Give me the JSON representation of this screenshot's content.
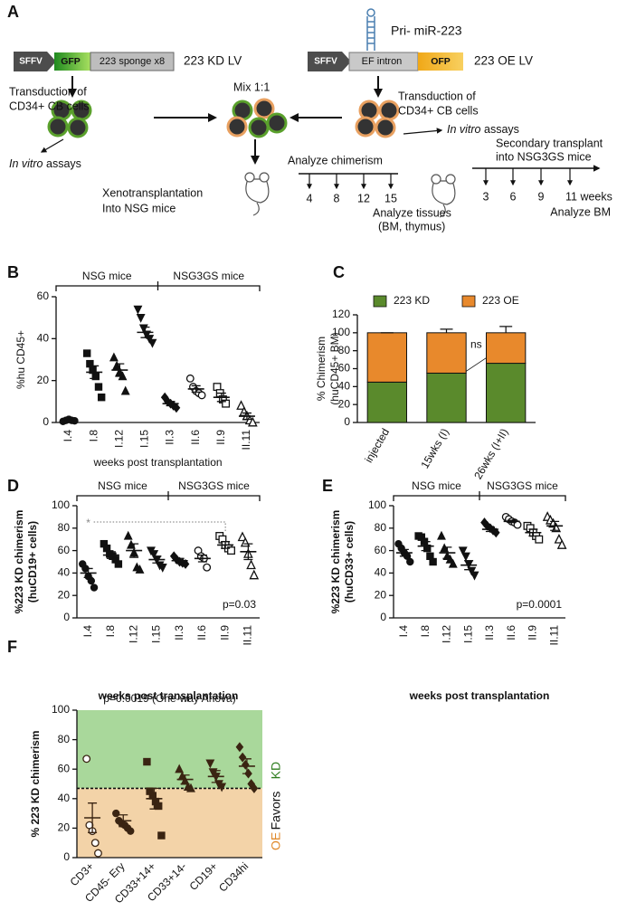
{
  "panel_labels": [
    "A",
    "B",
    "C",
    "D",
    "E",
    "F"
  ],
  "diagram": {
    "kd_construct": {
      "promoter": "SFFV",
      "reporter": "GFP",
      "insert": "223 sponge x8",
      "name": "223 KD LV"
    },
    "oe_construct": {
      "hairpin": "Pri- miR-223",
      "promoter": "SFFV",
      "intron": "EF intron",
      "reporter": "OFP",
      "name": "223 OE LV"
    },
    "transduction_left": [
      "Transduction of",
      "CD34+ CB cells"
    ],
    "transduction_right": [
      "Transduction of",
      "CD34+ CB cells"
    ],
    "mix": "Mix 1:1",
    "in_vitro_left": [
      "In vitro",
      " assays"
    ],
    "in_vitro_right": [
      "In vitro",
      " assays"
    ],
    "xeno": [
      "Xenotransplantation",
      "Into NSG mice"
    ],
    "analyze_chimerism": "Analyze chimerism",
    "primary_timepoints": [
      "4",
      "8",
      "12",
      "15"
    ],
    "analyze_tissues": [
      "Analyze tissues",
      "(BM, thymus)"
    ],
    "secondary": [
      "Secondary transplant",
      "into NSG3GS mice"
    ],
    "secondary_timepoints": [
      "3",
      "6",
      "9",
      "11 weeks"
    ],
    "analyze_bm": "Analyze BM"
  },
  "chart_data": [
    {
      "type": "dot",
      "ylabel": [
        "%hu CD45+"
      ],
      "xlabel": "weeks post transplantation",
      "group_labels": [
        "NSG mice",
        "NSG3GS mice"
      ],
      "color": "#111111",
      "categories": [
        "I.4",
        "I.8",
        "I.12",
        "I.15",
        "II.3",
        "II.6",
        "II.9",
        "II.11"
      ],
      "markers": [
        "circle",
        "square",
        "triangle",
        "down",
        "diamond",
        "circle-open",
        "square-open",
        "triangle-open"
      ],
      "points": [
        [
          0.5,
          1,
          1.5,
          1,
          0.8
        ],
        [
          33,
          28,
          25,
          22,
          17,
          12
        ],
        [
          31,
          27,
          24,
          22,
          15
        ],
        [
          54,
          50,
          45,
          42,
          40,
          38
        ],
        [
          12,
          10,
          9,
          8,
          7
        ],
        [
          21,
          17,
          15,
          14,
          13
        ],
        [
          17,
          14,
          11,
          9
        ],
        [
          8,
          5,
          3,
          1,
          0
        ]
      ],
      "means": [
        1,
        24,
        25,
        43,
        9,
        16,
        12,
        3
      ],
      "sems": [
        0.3,
        3,
        3,
        2.5,
        1,
        1.5,
        2,
        1.5
      ],
      "ylim": [
        0,
        60
      ],
      "yticks": [
        0,
        20,
        40,
        60
      ]
    },
    {
      "type": "bar",
      "stacked": true,
      "ylabel": [
        "% Chimerism",
        "(huCD45+ BM)"
      ],
      "categories": [
        "injected",
        "15wks (I)",
        "26wks (I+II)"
      ],
      "series": [
        {
          "name": "223 KD",
          "color": "#5a8a2c",
          "values": [
            45,
            55,
            66
          ],
          "errors": [
            0,
            4,
            8
          ]
        },
        {
          "name": "223 OE",
          "color": "#e8892c",
          "values": [
            55,
            45,
            34
          ],
          "errors": [
            0,
            4,
            7
          ]
        }
      ],
      "annotation": "ns",
      "ylim": [
        0,
        120
      ],
      "yticks": [
        0,
        20,
        40,
        60,
        80,
        100,
        120
      ]
    },
    {
      "type": "dot",
      "ylabel": [
        "%223 KD chimerism",
        "(huCD19+ cells)"
      ],
      "xlabel": "weeks post transplantation",
      "group_labels": [
        "NSG mice",
        "NSG3GS mice"
      ],
      "color": "#111111",
      "significance": "*",
      "p_value": "p=0.03",
      "categories": [
        "I.4",
        "I.8",
        "I.12",
        "I.15",
        "II.3",
        "II.6",
        "II.9",
        "II.11"
      ],
      "markers": [
        "circle",
        "square",
        "triangle",
        "down",
        "diamond",
        "circle-open",
        "square-open",
        "triangle-open"
      ],
      "points": [
        [
          48,
          44,
          37,
          33,
          27
        ],
        [
          66,
          62,
          57,
          55,
          52,
          48
        ],
        [
          73,
          65,
          58,
          45,
          43
        ],
        [
          60,
          57,
          52,
          47,
          45
        ],
        [
          55,
          52,
          50,
          49,
          48
        ],
        [
          60,
          55,
          53,
          45
        ],
        [
          73,
          70,
          65,
          62,
          60
        ],
        [
          72,
          67,
          57,
          47,
          38
        ]
      ],
      "means": [
        40,
        56,
        60,
        52,
        51,
        53,
        65,
        59
      ],
      "sems": [
        4,
        3,
        6,
        3,
        2,
        3,
        3,
        7
      ],
      "ylim": [
        0,
        100
      ],
      "yticks": [
        0,
        20,
        40,
        60,
        80,
        100
      ]
    },
    {
      "type": "dot",
      "ylabel": [
        "%223 KD chimerism",
        "(huCD33+ cells)"
      ],
      "xlabel": "weeks post transplantation",
      "group_labels": [
        "NSG mice",
        "NSG3GS mice"
      ],
      "color": "#111111",
      "p_value": "p=0.0001",
      "categories": [
        "I.4",
        "I.8",
        "I.12",
        "I.15",
        "II.3",
        "II.6",
        "II.9",
        "II.11"
      ],
      "markers": [
        "circle",
        "square",
        "triangle",
        "down",
        "diamond",
        "circle-open",
        "square-open",
        "triangle-open"
      ],
      "points": [
        [
          66,
          62,
          58,
          55,
          50
        ],
        [
          73,
          72,
          68,
          62,
          55,
          50
        ],
        [
          73,
          62,
          55,
          52,
          48
        ],
        [
          60,
          55,
          48,
          42,
          38
        ],
        [
          85,
          82,
          80,
          78,
          76
        ],
        [
          90,
          88,
          86,
          85,
          83
        ],
        [
          82,
          80,
          76,
          73,
          70
        ],
        [
          90,
          87,
          84,
          80,
          70,
          65
        ]
      ],
      "means": [
        58,
        64,
        58,
        47,
        79,
        86,
        76,
        82
      ],
      "sems": [
        3,
        4,
        5,
        4,
        2,
        1,
        3,
        4
      ],
      "ylim": [
        0,
        100
      ],
      "yticks": [
        0,
        20,
        40,
        60,
        80,
        100
      ]
    },
    {
      "type": "dot",
      "title": "p=0.0019 (One-way Anova)",
      "ylabel": [
        "% 223 KD chimerism"
      ],
      "color": "#3a2412",
      "threshold": 47,
      "above_color": "#a9d89b",
      "below_color": "#f3d3a8",
      "side_labels": {
        "favors": "Favors",
        "kd": "KD",
        "oe": "OE",
        "kd_color": "#2e7d1e",
        "oe_color": "#e08a2c"
      },
      "categories": [
        "CD3+",
        "CD45- Ery",
        "CD33+14+",
        "CD33+14-",
        "CD19+",
        "CD34hi"
      ],
      "markers": [
        "circle-open",
        "circle",
        "square",
        "triangle",
        "down",
        "diamond"
      ],
      "points": [
        [
          67,
          22,
          18,
          10,
          3
        ],
        [
          30,
          25,
          23,
          22,
          20,
          18
        ],
        [
          65,
          45,
          42,
          38,
          35,
          15
        ],
        [
          60,
          55,
          52,
          48,
          47
        ],
        [
          64,
          58,
          55,
          50,
          48
        ],
        [
          75,
          68,
          63,
          57,
          50,
          47
        ]
      ],
      "means": [
        27,
        25,
        40,
        53,
        55,
        62
      ],
      "sems": [
        10,
        4,
        7,
        3,
        4,
        5
      ],
      "ylim": [
        0,
        100
      ],
      "yticks": [
        0,
        20,
        40,
        60,
        80,
        100
      ]
    }
  ]
}
